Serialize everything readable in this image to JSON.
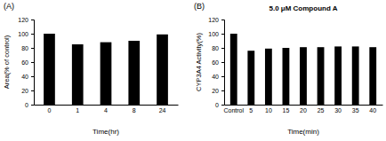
{
  "chart_data": [
    {
      "type": "bar",
      "title": "(A)",
      "xlabel": "Time(hr)",
      "ylabel": "Area(% of control)",
      "categories": [
        "0",
        "1",
        "4",
        "8",
        "24"
      ],
      "values": [
        100,
        85,
        88,
        90,
        99
      ],
      "color": "#000000",
      "ylim": [
        0,
        120
      ],
      "yticks": [
        0,
        20,
        40,
        60,
        80,
        100,
        120
      ]
    },
    {
      "type": "bar",
      "title": "(B)",
      "subtitle": "5.0 μM  Compound A",
      "xlabel": "Time(min)",
      "ylabel": "CYP3A4 Activity(%)",
      "categories": [
        "Control",
        "5",
        "10",
        "15",
        "20",
        "25",
        "30",
        "35",
        "40"
      ],
      "values": [
        100,
        76,
        79,
        80,
        81,
        81,
        82,
        82,
        81
      ],
      "color": "#000000",
      "ylim": [
        0,
        120
      ],
      "yticks": [
        0,
        20,
        40,
        60,
        80,
        100,
        120
      ]
    }
  ]
}
